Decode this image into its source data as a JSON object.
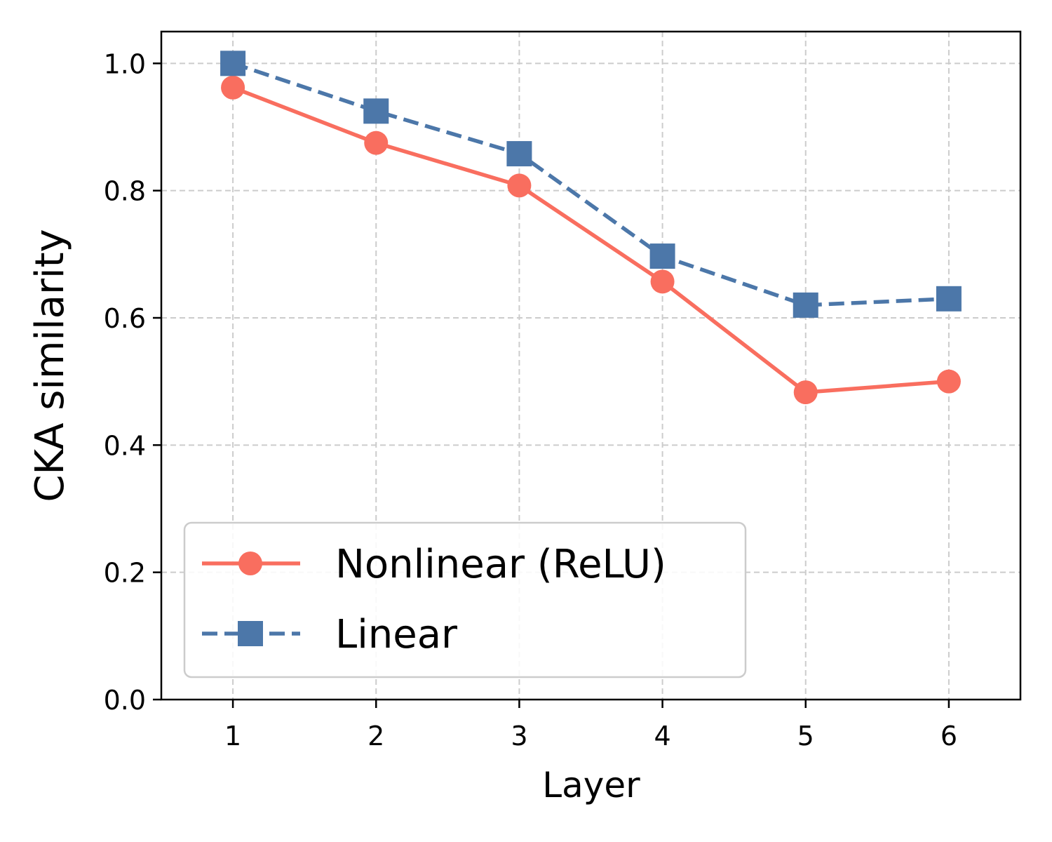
{
  "chart_data": {
    "type": "line",
    "title": "",
    "xlabel": "Layer",
    "ylabel": "CKA similarity",
    "x": [
      1,
      2,
      3,
      4,
      5,
      6
    ],
    "xlim": [
      0.5,
      6.5
    ],
    "ylim": [
      0.0,
      1.05
    ],
    "xticks": [
      "1",
      "2",
      "3",
      "4",
      "5",
      "6"
    ],
    "yticks": [
      "0.0",
      "0.2",
      "0.4",
      "0.6",
      "0.8",
      "1.0"
    ],
    "grid": true,
    "legend_position": "lower-left",
    "series": [
      {
        "name": "Nonlinear (ReLU)",
        "values": [
          0.962,
          0.875,
          0.808,
          0.657,
          0.483,
          0.5
        ],
        "color": "#F96E5F",
        "line_style": "solid",
        "marker": "circle"
      },
      {
        "name": "Linear",
        "values": [
          1.0,
          0.925,
          0.858,
          0.697,
          0.62,
          0.63
        ],
        "color": "#4C77A9",
        "line_style": "dashed",
        "marker": "square"
      }
    ]
  }
}
